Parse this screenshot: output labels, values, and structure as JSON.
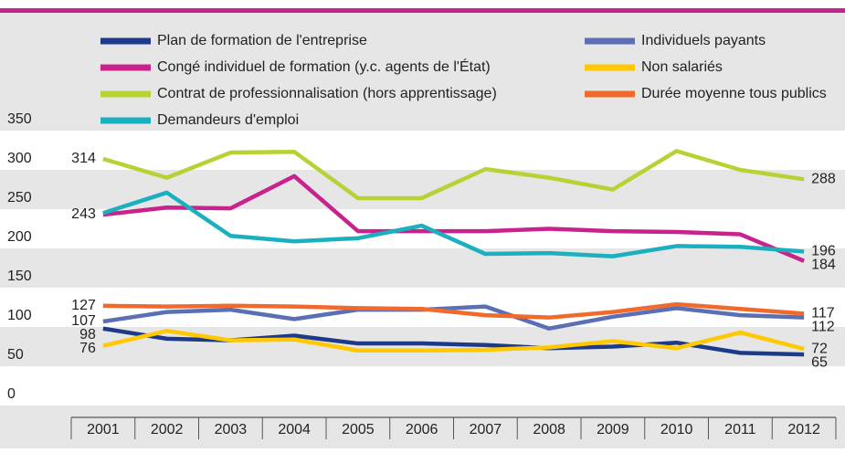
{
  "chart_data": {
    "type": "line",
    "categories": [
      "2001",
      "2002",
      "2003",
      "2004",
      "2005",
      "2006",
      "2007",
      "2008",
      "2009",
      "2010",
      "2011",
      "2012"
    ],
    "ylim": [
      0,
      350
    ],
    "yticks": [
      0,
      50,
      100,
      150,
      200,
      250,
      300,
      350
    ],
    "series": [
      {
        "name": "Plan de formation de l'entreprise",
        "color": "#1d3a8a",
        "values": [
          98,
          85,
          83,
          89,
          79,
          79,
          77,
          73,
          75,
          80,
          67,
          65
        ],
        "value_labels": [
          "98",
          null,
          null,
          null,
          null,
          null,
          null,
          null,
          null,
          null,
          null,
          "65"
        ]
      },
      {
        "name": "Congé individuel de formation (y.c. agents de l'État)",
        "color": "#c8238c",
        "values": [
          243,
          252,
          251,
          292,
          222,
          222,
          222,
          225,
          222,
          221,
          218,
          184
        ],
        "value_labels": [
          "243",
          null,
          null,
          null,
          null,
          null,
          null,
          null,
          null,
          null,
          null,
          "184"
        ]
      },
      {
        "name": "Contrat de professionnalisation (hors apprentissage)",
        "color": "#b5d334",
        "values": [
          314,
          290,
          322,
          323,
          264,
          264,
          301,
          290,
          275,
          324,
          300,
          288
        ],
        "value_labels": [
          "314",
          null,
          null,
          null,
          null,
          null,
          null,
          null,
          null,
          null,
          null,
          "288"
        ]
      },
      {
        "name": "Demandeurs d'emploi",
        "color": "#1ab0c0",
        "values": [
          245,
          271,
          216,
          209,
          213,
          229,
          193,
          194,
          190,
          203,
          202,
          196
        ],
        "value_labels": [
          null,
          null,
          null,
          null,
          null,
          null,
          null,
          null,
          null,
          null,
          null,
          "196"
        ]
      },
      {
        "name": "Individuels payants",
        "color": "#5b6fb5",
        "values": [
          107,
          119,
          122,
          110,
          122,
          122,
          126,
          98,
          113,
          124,
          115,
          112
        ],
        "value_labels": [
          "107",
          null,
          null,
          null,
          null,
          null,
          null,
          null,
          null,
          null,
          null,
          "112"
        ]
      },
      {
        "name": "Non salariés",
        "color": "#ffc800",
        "values": [
          76,
          95,
          83,
          84,
          70,
          70,
          71,
          74,
          82,
          73,
          93,
          72
        ],
        "value_labels": [
          "76",
          null,
          null,
          null,
          null,
          null,
          null,
          null,
          null,
          null,
          null,
          "72"
        ]
      },
      {
        "name": "Durée moyenne tous publics",
        "color": "#f06a2c",
        "values": [
          127,
          126,
          127,
          126,
          124,
          123,
          115,
          112,
          119,
          129,
          123,
          117
        ],
        "value_labels": [
          "127",
          null,
          null,
          null,
          null,
          null,
          null,
          null,
          null,
          null,
          null,
          "117"
        ]
      }
    ]
  }
}
